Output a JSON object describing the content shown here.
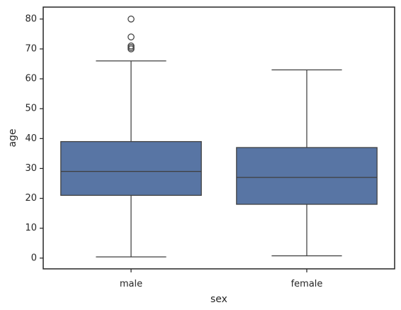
{
  "chart_data": {
    "type": "box",
    "xlabel": "sex",
    "ylabel": "age",
    "categories": [
      "male",
      "female"
    ],
    "boxes": [
      {
        "category": "male",
        "whisker_low": 0.42,
        "q1": 21,
        "median": 29,
        "q3": 39,
        "whisker_high": 66,
        "outliers": [
          70,
          70.5,
          71,
          74,
          80
        ]
      },
      {
        "category": "female",
        "whisker_low": 0.75,
        "q1": 18,
        "median": 27,
        "q3": 37,
        "whisker_high": 63,
        "outliers": []
      }
    ],
    "yticks": [
      0,
      10,
      20,
      30,
      40,
      50,
      60,
      70,
      80
    ],
    "ylim": [
      -3.6,
      84
    ],
    "grid": false,
    "colors": {
      "box_fill": "#5875a4",
      "line": "#3f3f3f",
      "axis": "#262626"
    }
  }
}
